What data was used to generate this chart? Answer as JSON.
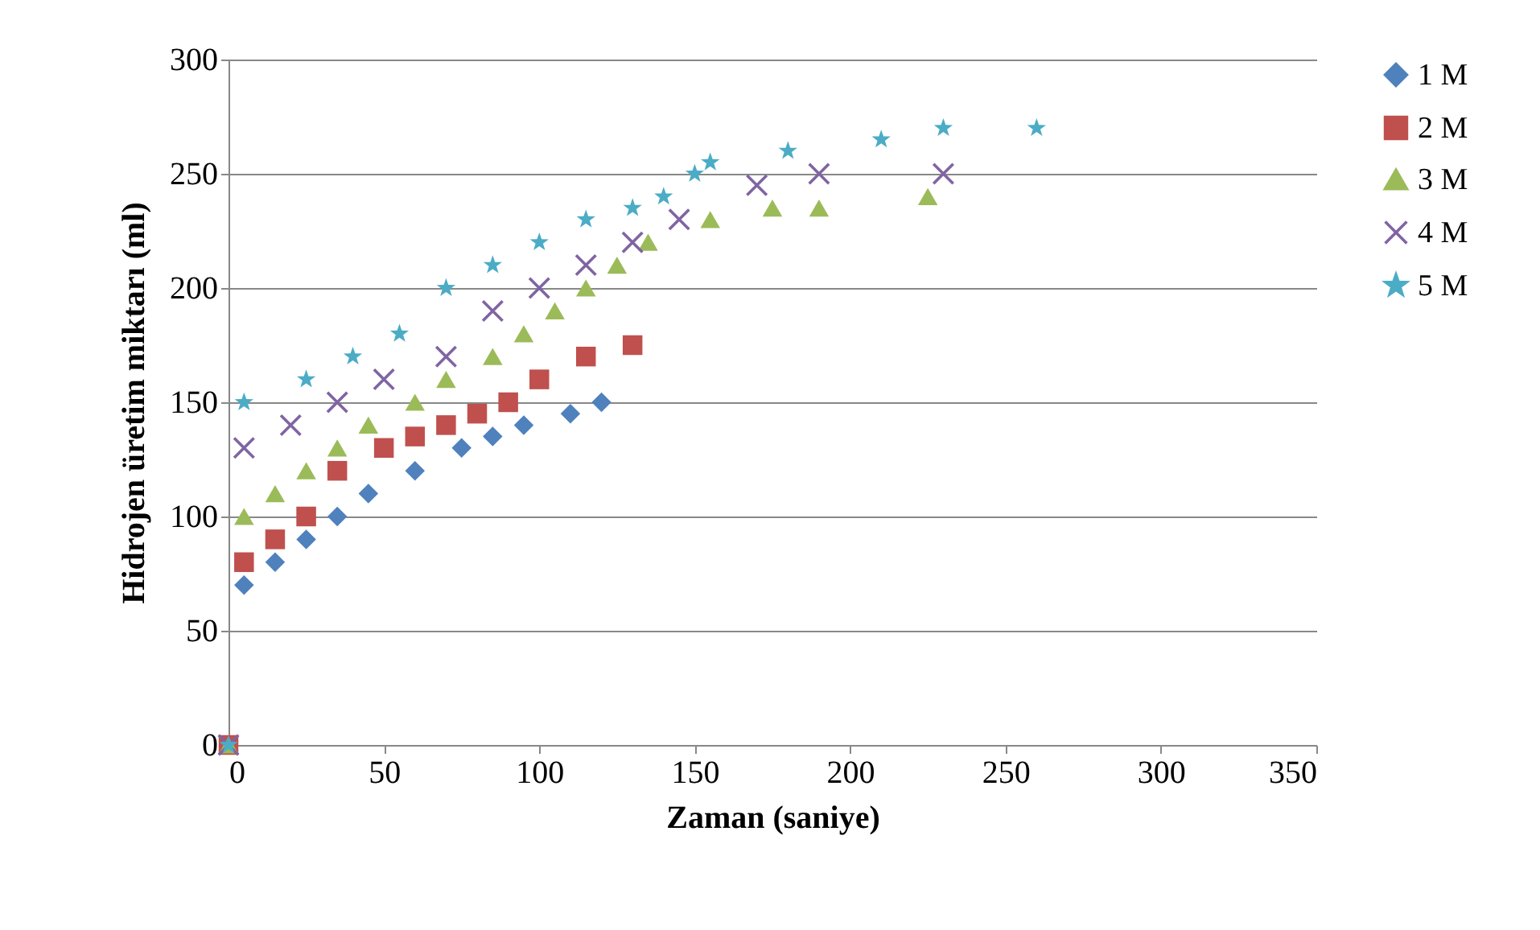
{
  "chart_data": {
    "type": "scatter",
    "xlabel": "Zaman (saniye)",
    "ylabel": "Hidrojen üretim miktarı (ml)",
    "xlim": [
      0,
      350
    ],
    "xticks": [
      0,
      50,
      100,
      150,
      200,
      250,
      300,
      350
    ],
    "ylim": [
      0,
      300
    ],
    "yticks": [
      0,
      50,
      100,
      150,
      200,
      250,
      300
    ],
    "grid": "y",
    "legend": "right",
    "series": [
      {
        "name": "1 M",
        "color": "#4f81bd",
        "marker": "diamond",
        "x": [
          5,
          15,
          25,
          35,
          45,
          60,
          75,
          85,
          95,
          110,
          120
        ],
        "values": [
          70,
          80,
          90,
          100,
          110,
          120,
          130,
          135,
          140,
          145,
          150
        ]
      },
      {
        "name": "2 M",
        "color": "#c0504d",
        "marker": "square",
        "x": [
          0,
          5,
          15,
          25,
          35,
          50,
          60,
          70,
          80,
          90,
          100,
          115,
          130
        ],
        "values": [
          0,
          80,
          90,
          100,
          120,
          130,
          135,
          140,
          145,
          150,
          160,
          170,
          175
        ]
      },
      {
        "name": "3 M",
        "color": "#9bbb59",
        "marker": "triangle",
        "x": [
          0,
          5,
          15,
          25,
          35,
          45,
          60,
          70,
          85,
          95,
          105,
          115,
          125,
          135,
          155,
          175,
          190,
          225
        ],
        "values": [
          0,
          100,
          110,
          120,
          130,
          140,
          150,
          160,
          170,
          180,
          190,
          200,
          210,
          220,
          230,
          235,
          235,
          240
        ]
      },
      {
        "name": "4 M",
        "color": "#8064a2",
        "marker": "cross",
        "x": [
          0,
          5,
          20,
          35,
          50,
          70,
          85,
          100,
          115,
          130,
          145,
          170,
          190,
          230
        ],
        "values": [
          0,
          130,
          140,
          150,
          160,
          170,
          190,
          200,
          210,
          220,
          230,
          245,
          250,
          250
        ]
      },
      {
        "name": "5 M",
        "color": "#4bacc6",
        "marker": "star",
        "x": [
          0,
          5,
          25,
          40,
          55,
          70,
          85,
          100,
          115,
          130,
          140,
          150,
          155,
          180,
          210,
          230,
          260
        ],
        "values": [
          0,
          150,
          160,
          170,
          180,
          200,
          210,
          220,
          230,
          235,
          240,
          250,
          255,
          260,
          265,
          270,
          270
        ]
      }
    ]
  }
}
